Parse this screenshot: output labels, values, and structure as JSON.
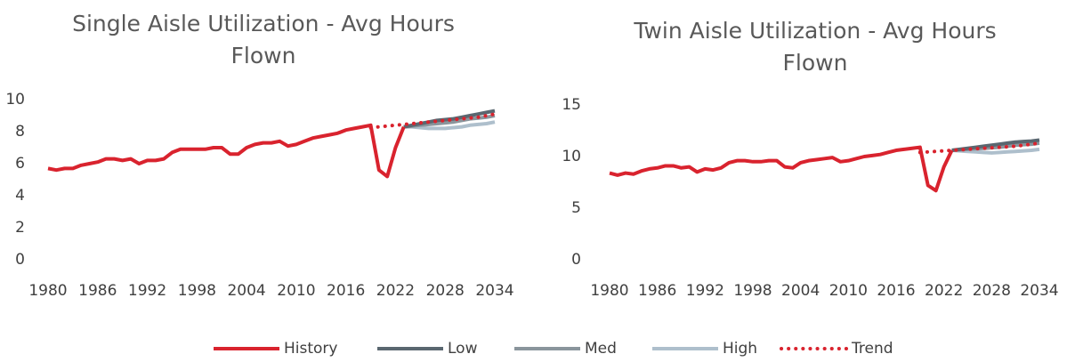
{
  "chart_data": [
    {
      "type": "line",
      "title": "Single Aisle Utilization - Avg Hours Flown",
      "x": [
        1980,
        1981,
        1982,
        1983,
        1984,
        1985,
        1986,
        1987,
        1988,
        1989,
        1990,
        1991,
        1992,
        1993,
        1994,
        1995,
        1996,
        1997,
        1998,
        1999,
        2000,
        2001,
        2002,
        2003,
        2004,
        2005,
        2006,
        2007,
        2008,
        2009,
        2010,
        2011,
        2012,
        2013,
        2014,
        2015,
        2016,
        2017,
        2018,
        2019,
        2020,
        2021,
        2022,
        2023,
        2024,
        2025,
        2026,
        2027,
        2028,
        2029,
        2030,
        2031,
        2032,
        2033,
        2034
      ],
      "xlim": [
        1980,
        2034
      ],
      "xticks": [
        1980,
        1986,
        1992,
        1998,
        2004,
        2010,
        2016,
        2022,
        2028,
        2034
      ],
      "ylim": [
        0,
        10
      ],
      "yticks": [
        0,
        2,
        4,
        6,
        8,
        10
      ],
      "series": [
        {
          "name": "History",
          "color": "#d9232e",
          "style": "solid",
          "values": [
            5.7,
            5.6,
            5.7,
            5.7,
            5.9,
            6.0,
            6.1,
            6.3,
            6.3,
            6.2,
            6.3,
            6.0,
            6.2,
            6.2,
            6.3,
            6.7,
            6.9,
            6.9,
            6.9,
            6.9,
            7.0,
            7.0,
            6.6,
            6.6,
            7.0,
            7.2,
            7.3,
            7.3,
            7.4,
            7.1,
            7.2,
            7.4,
            7.6,
            7.7,
            7.8,
            7.9,
            8.1,
            8.2,
            8.3,
            8.4,
            5.6,
            5.2,
            7.0,
            8.3,
            null,
            null,
            null,
            null,
            null,
            null,
            null,
            null,
            null,
            null,
            null
          ]
        },
        {
          "name": "Low",
          "color": "#5a6770",
          "style": "solid",
          "values": [
            null,
            null,
            null,
            null,
            null,
            null,
            null,
            null,
            null,
            null,
            null,
            null,
            null,
            null,
            null,
            null,
            null,
            null,
            null,
            null,
            null,
            null,
            null,
            null,
            null,
            null,
            null,
            null,
            null,
            null,
            null,
            null,
            null,
            null,
            null,
            null,
            null,
            null,
            null,
            null,
            null,
            null,
            null,
            8.3,
            8.4,
            8.5,
            8.6,
            8.7,
            8.75,
            8.8,
            8.9,
            9.0,
            9.1,
            9.2,
            9.3
          ]
        },
        {
          "name": "Med",
          "color": "#8a959c",
          "style": "solid",
          "values": [
            null,
            null,
            null,
            null,
            null,
            null,
            null,
            null,
            null,
            null,
            null,
            null,
            null,
            null,
            null,
            null,
            null,
            null,
            null,
            null,
            null,
            null,
            null,
            null,
            null,
            null,
            null,
            null,
            null,
            null,
            null,
            null,
            null,
            null,
            null,
            null,
            null,
            null,
            null,
            null,
            null,
            null,
            null,
            8.3,
            8.35,
            8.4,
            8.45,
            8.5,
            8.55,
            8.6,
            8.7,
            8.8,
            8.85,
            8.9,
            9.0
          ]
        },
        {
          "name": "High",
          "color": "#aebfcc",
          "style": "solid",
          "values": [
            null,
            null,
            null,
            null,
            null,
            null,
            null,
            null,
            null,
            null,
            null,
            null,
            null,
            null,
            null,
            null,
            null,
            null,
            null,
            null,
            null,
            null,
            null,
            null,
            null,
            null,
            null,
            null,
            null,
            null,
            null,
            null,
            null,
            null,
            null,
            null,
            null,
            null,
            null,
            null,
            null,
            null,
            null,
            8.3,
            8.3,
            8.25,
            8.2,
            8.2,
            8.2,
            8.25,
            8.3,
            8.4,
            8.45,
            8.5,
            8.6
          ]
        },
        {
          "name": "Trend",
          "color": "#d9232e",
          "style": "dotted",
          "values": [
            null,
            null,
            null,
            null,
            null,
            null,
            null,
            null,
            null,
            null,
            null,
            null,
            null,
            null,
            null,
            null,
            null,
            null,
            null,
            null,
            null,
            null,
            null,
            null,
            null,
            null,
            null,
            null,
            null,
            null,
            null,
            null,
            null,
            null,
            null,
            null,
            null,
            null,
            null,
            8.25,
            8.3,
            8.35,
            8.4,
            8.45,
            8.5,
            8.55,
            8.6,
            8.65,
            8.7,
            8.75,
            8.8,
            8.85,
            8.9,
            9.0,
            9.1
          ]
        }
      ]
    },
    {
      "type": "line",
      "title": "Twin Aisle Utilization - Avg Hours Flown",
      "x": [
        1980,
        1981,
        1982,
        1983,
        1984,
        1985,
        1986,
        1987,
        1988,
        1989,
        1990,
        1991,
        1992,
        1993,
        1994,
        1995,
        1996,
        1997,
        1998,
        1999,
        2000,
        2001,
        2002,
        2003,
        2004,
        2005,
        2006,
        2007,
        2008,
        2009,
        2010,
        2011,
        2012,
        2013,
        2014,
        2015,
        2016,
        2017,
        2018,
        2019,
        2020,
        2021,
        2022,
        2023,
        2024,
        2025,
        2026,
        2027,
        2028,
        2029,
        2030,
        2031,
        2032,
        2033,
        2034
      ],
      "xlim": [
        1980,
        2034
      ],
      "xticks": [
        1980,
        1986,
        1992,
        1998,
        2004,
        2010,
        2016,
        2022,
        2028,
        2034
      ],
      "ylim": [
        0,
        15
      ],
      "yticks": [
        0,
        5,
        10,
        15
      ],
      "series": [
        {
          "name": "History",
          "color": "#d9232e",
          "style": "solid",
          "values": [
            8.4,
            8.2,
            8.4,
            8.3,
            8.6,
            8.8,
            8.9,
            9.1,
            9.1,
            8.9,
            9.0,
            8.5,
            8.8,
            8.7,
            8.9,
            9.4,
            9.6,
            9.6,
            9.5,
            9.5,
            9.6,
            9.6,
            9.0,
            8.9,
            9.4,
            9.6,
            9.7,
            9.8,
            9.9,
            9.5,
            9.6,
            9.8,
            10.0,
            10.1,
            10.2,
            10.4,
            10.6,
            10.7,
            10.8,
            10.9,
            7.2,
            6.7,
            9.0,
            10.6,
            null,
            null,
            null,
            null,
            null,
            null,
            null,
            null,
            null,
            null,
            null
          ]
        },
        {
          "name": "Low",
          "color": "#5a6770",
          "style": "solid",
          "values": [
            null,
            null,
            null,
            null,
            null,
            null,
            null,
            null,
            null,
            null,
            null,
            null,
            null,
            null,
            null,
            null,
            null,
            null,
            null,
            null,
            null,
            null,
            null,
            null,
            null,
            null,
            null,
            null,
            null,
            null,
            null,
            null,
            null,
            null,
            null,
            null,
            null,
            null,
            null,
            null,
            null,
            null,
            null,
            10.6,
            10.7,
            10.8,
            10.9,
            11.0,
            11.1,
            11.2,
            11.3,
            11.4,
            11.45,
            11.5,
            11.6
          ]
        },
        {
          "name": "Med",
          "color": "#8a959c",
          "style": "solid",
          "values": [
            null,
            null,
            null,
            null,
            null,
            null,
            null,
            null,
            null,
            null,
            null,
            null,
            null,
            null,
            null,
            null,
            null,
            null,
            null,
            null,
            null,
            null,
            null,
            null,
            null,
            null,
            null,
            null,
            null,
            null,
            null,
            null,
            null,
            null,
            null,
            null,
            null,
            null,
            null,
            null,
            null,
            null,
            null,
            10.6,
            10.65,
            10.7,
            10.75,
            10.8,
            10.85,
            10.9,
            11.0,
            11.1,
            11.15,
            11.2,
            11.3
          ]
        },
        {
          "name": "High",
          "color": "#aebfcc",
          "style": "solid",
          "values": [
            null,
            null,
            null,
            null,
            null,
            null,
            null,
            null,
            null,
            null,
            null,
            null,
            null,
            null,
            null,
            null,
            null,
            null,
            null,
            null,
            null,
            null,
            null,
            null,
            null,
            null,
            null,
            null,
            null,
            null,
            null,
            null,
            null,
            null,
            null,
            null,
            null,
            null,
            null,
            null,
            null,
            null,
            null,
            10.6,
            10.55,
            10.5,
            10.45,
            10.4,
            10.35,
            10.4,
            10.45,
            10.5,
            10.55,
            10.6,
            10.7
          ]
        },
        {
          "name": "Trend",
          "color": "#d9232e",
          "style": "dotted",
          "values": [
            null,
            null,
            null,
            null,
            null,
            null,
            null,
            null,
            null,
            null,
            null,
            null,
            null,
            null,
            null,
            null,
            null,
            null,
            null,
            null,
            null,
            null,
            null,
            null,
            null,
            null,
            null,
            null,
            null,
            null,
            null,
            null,
            null,
            null,
            null,
            null,
            null,
            null,
            null,
            10.4,
            10.45,
            10.5,
            10.55,
            10.6,
            10.65,
            10.7,
            10.75,
            10.8,
            10.85,
            10.9,
            10.95,
            11.0,
            11.1,
            11.2,
            11.3
          ]
        }
      ]
    }
  ]
}
